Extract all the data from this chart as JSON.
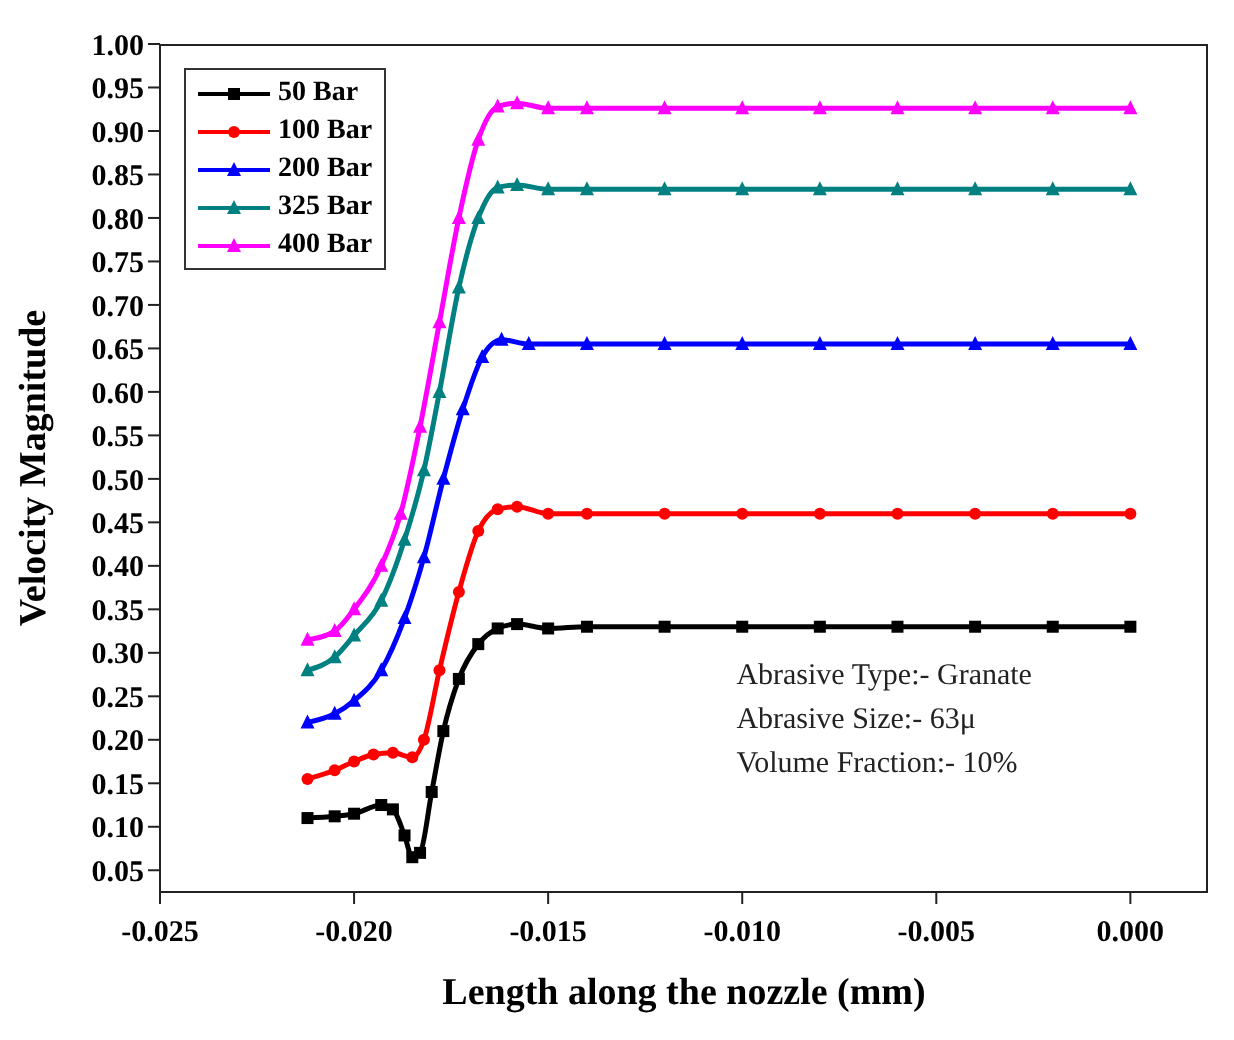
{
  "chart_data": {
    "type": "line",
    "xlabel": "Length along the nozzle (mm)",
    "ylabel": "Velocity Magnitude",
    "annotations": [
      "Abrasive Type:- Granate",
      "Abrasive Size:- 63μ",
      "Volume Fraction:- 10%"
    ],
    "xlim": [
      -0.025,
      0.002
    ],
    "xticks": [
      -0.025,
      {
        "value": -0.02,
        "label": "-0.020"
      },
      -0.015,
      {
        "value": -0.01,
        "label": "-0.010"
      },
      -0.005,
      {
        "value": 0,
        "label": "0.000"
      }
    ],
    "ylim": [
      0.025,
      1.0
    ],
    "yticks": [
      0.05,
      {
        "value": 0.1,
        "label": "0.10"
      },
      0.15,
      {
        "value": 0.2,
        "label": "0.20"
      },
      0.25,
      {
        "value": 0.3,
        "label": "0.30"
      },
      0.35,
      {
        "value": 0.4,
        "label": "0.40"
      },
      0.45,
      {
        "value": 0.5,
        "label": "0.50"
      },
      0.55,
      {
        "value": 0.6,
        "label": "0.60"
      },
      0.65,
      {
        "value": 0.7,
        "label": "0.70"
      },
      0.75,
      {
        "value": 0.8,
        "label": "0.80"
      },
      0.85,
      {
        "value": 0.9,
        "label": "0.90"
      },
      0.95,
      {
        "value": 1.0,
        "label": "1.00"
      }
    ],
    "grid": false,
    "legend": "top left",
    "line_style": "solid",
    "series": [
      {
        "name": "50 Bar",
        "color": "#000000",
        "marker": "square",
        "x": [
          -0.0212,
          -0.0205,
          -0.02,
          -0.0193,
          -0.019,
          -0.0187,
          -0.0185,
          -0.0183,
          -0.018,
          -0.0177,
          -0.0173,
          -0.0168,
          -0.0163,
          -0.0158,
          -0.015,
          -0.014,
          -0.012,
          -0.01,
          -0.008,
          -0.006,
          -0.004,
          -0.002,
          0
        ],
        "values": [
          0.11,
          0.112,
          0.115,
          0.125,
          0.12,
          0.09,
          0.065,
          0.07,
          0.14,
          0.21,
          0.27,
          0.31,
          0.328,
          0.333,
          0.328,
          0.33,
          0.33,
          0.33,
          0.33,
          0.33,
          0.33,
          0.33,
          0.33
        ]
      },
      {
        "name": "100 Bar",
        "color": "#ff0000",
        "marker": "circle",
        "x": [
          -0.0212,
          -0.0205,
          -0.02,
          -0.0195,
          -0.019,
          -0.0185,
          -0.0182,
          -0.0178,
          -0.0173,
          -0.0168,
          -0.0163,
          -0.0158,
          -0.015,
          -0.014,
          -0.012,
          -0.01,
          -0.008,
          -0.006,
          -0.004,
          -0.002,
          0
        ],
        "values": [
          0.155,
          0.165,
          0.175,
          0.183,
          0.185,
          0.18,
          0.2,
          0.28,
          0.37,
          0.44,
          0.465,
          0.468,
          0.46,
          0.46,
          0.46,
          0.46,
          0.46,
          0.46,
          0.46,
          0.46,
          0.46
        ]
      },
      {
        "name": "200 Bar",
        "color": "#0000ff",
        "marker": "triangle",
        "x": [
          -0.0212,
          -0.0205,
          -0.02,
          -0.0193,
          -0.0187,
          -0.0182,
          -0.0177,
          -0.0172,
          -0.0167,
          -0.0162,
          -0.0155,
          -0.014,
          -0.012,
          -0.01,
          -0.008,
          -0.006,
          -0.004,
          -0.002,
          0
        ],
        "values": [
          0.22,
          0.23,
          0.245,
          0.28,
          0.34,
          0.41,
          0.5,
          0.58,
          0.64,
          0.66,
          0.655,
          0.655,
          0.655,
          0.655,
          0.655,
          0.655,
          0.655,
          0.655,
          0.655
        ]
      },
      {
        "name": "325 Bar",
        "color": "#008080",
        "marker": "triangle",
        "x": [
          -0.0212,
          -0.0205,
          -0.02,
          -0.0193,
          -0.0187,
          -0.0182,
          -0.0178,
          -0.0173,
          -0.0168,
          -0.0163,
          -0.0158,
          -0.015,
          -0.014,
          -0.012,
          -0.01,
          -0.008,
          -0.006,
          -0.004,
          -0.002,
          0
        ],
        "values": [
          0.28,
          0.295,
          0.32,
          0.36,
          0.43,
          0.51,
          0.6,
          0.72,
          0.8,
          0.835,
          0.838,
          0.833,
          0.833,
          0.833,
          0.833,
          0.833,
          0.833,
          0.833,
          0.833,
          0.833
        ]
      },
      {
        "name": "400 Bar",
        "color": "#ff00ff",
        "marker": "triangle",
        "x": [
          -0.0212,
          -0.0205,
          -0.02,
          -0.0193,
          -0.0188,
          -0.0183,
          -0.0178,
          -0.0173,
          -0.0168,
          -0.0163,
          -0.0158,
          -0.015,
          -0.014,
          -0.012,
          -0.01,
          -0.008,
          -0.006,
          -0.004,
          -0.002,
          0
        ],
        "values": [
          0.315,
          0.325,
          0.35,
          0.4,
          0.46,
          0.56,
          0.68,
          0.8,
          0.89,
          0.928,
          0.932,
          0.926,
          0.926,
          0.926,
          0.926,
          0.926,
          0.926,
          0.926,
          0.926,
          0.926
        ]
      }
    ]
  }
}
